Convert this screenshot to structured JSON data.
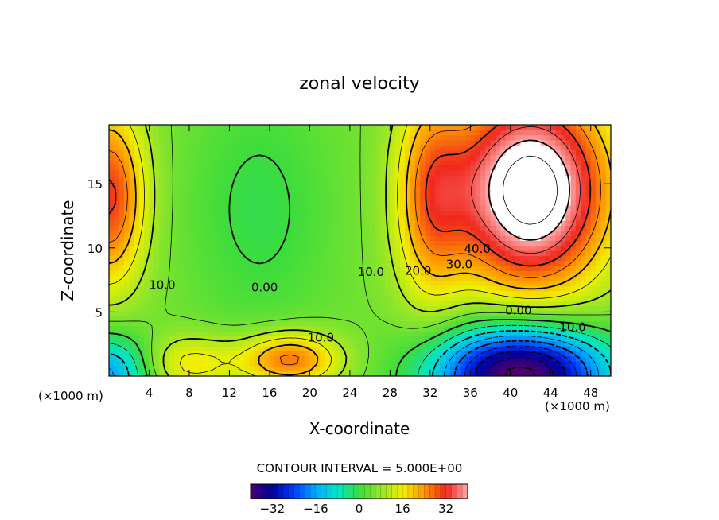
{
  "chart_data": {
    "type": "heatmap",
    "title": "zonal velocity",
    "xlabel": "X-coordinate",
    "ylabel": "Z-coordinate",
    "x_unit_left": "(×1000 m)",
    "x_unit_right": "(×1000 m)",
    "xlim": [
      0,
      50
    ],
    "ylim": [
      0,
      19.6
    ],
    "x_ticks": [
      4,
      8,
      12,
      16,
      20,
      24,
      28,
      32,
      36,
      40,
      44,
      48
    ],
    "y_ticks": [
      5,
      10,
      15
    ],
    "contour_interval_text": "CONTOUR INTERVAL = 5.000E+00",
    "contour_labels": [
      {
        "text": "10.0",
        "x": 5.3,
        "y": 6.8
      },
      {
        "text": "0.00",
        "x": 15.5,
        "y": 6.6
      },
      {
        "text": "10.0",
        "x": 26.1,
        "y": 7.8
      },
      {
        "text": "20.0",
        "x": 30.8,
        "y": 7.9
      },
      {
        "text": "30.0",
        "x": 34.9,
        "y": 8.4
      },
      {
        "text": "40.0",
        "x": 36.7,
        "y": 9.6
      },
      {
        "text": "0.00",
        "x": 40.8,
        "y": 4.8
      },
      {
        "text": "10.0",
        "x": 46.2,
        "y": 3.5
      },
      {
        "text": "10.0",
        "x": 21.1,
        "y": 2.7
      }
    ],
    "colorbar": {
      "range": [
        -40,
        40
      ],
      "ticks": [
        -32,
        -16,
        0,
        16,
        32
      ],
      "tick_labels": [
        "−32",
        "−16",
        "0",
        "16",
        "32"
      ]
    },
    "features": [
      {
        "type": "max",
        "x": 42,
        "y": 14,
        "value": 45,
        "note": "region above 40 left unfilled"
      },
      {
        "type": "min",
        "x": 40.5,
        "y": 0.5,
        "value": -38
      },
      {
        "type": "max",
        "x": 18,
        "y": 1.2,
        "value": 25
      },
      {
        "type": "max",
        "x": 0.5,
        "y": 14,
        "value": 28
      }
    ]
  }
}
